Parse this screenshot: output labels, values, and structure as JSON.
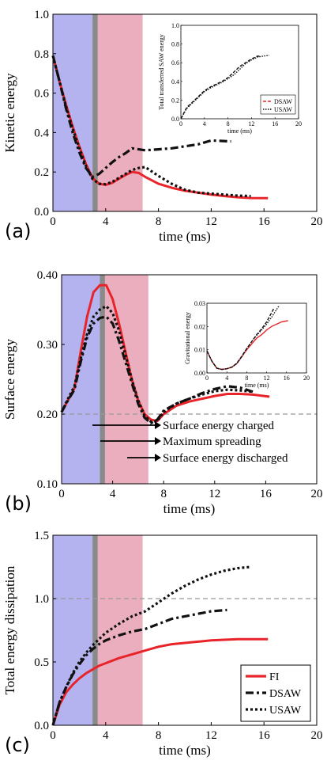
{
  "colors": {
    "phase1": "#b4b2ef",
    "phase2": "#eaaebf",
    "marker": "#8a8a8a",
    "FI": "#e8242a",
    "DSAW": "#111111",
    "USAW": "#111111",
    "refline": "#999999"
  },
  "chart_data": [
    {
      "type": "line",
      "panel": "(a)",
      "xlabel": "time (ms)",
      "ylabel": "Kinetic energy",
      "xlim": [
        0,
        20
      ],
      "ylim": [
        0,
        1.0
      ],
      "xticks": [
        "0",
        "4",
        "8",
        "12",
        "16",
        "20"
      ],
      "yticks": [
        "0.0",
        "0.2",
        "0.4",
        "0.6",
        "0.8",
        "1.0"
      ],
      "series": [
        {
          "key": "FI",
          "x": [
            0,
            0.5,
            1,
            1.5,
            2,
            2.5,
            3,
            3.5,
            4,
            4.5,
            5,
            5.5,
            6,
            6.5,
            7,
            8,
            9,
            10,
            11,
            12,
            13,
            14,
            15,
            16.3
          ],
          "y": [
            0.79,
            0.66,
            0.54,
            0.43,
            0.33,
            0.24,
            0.17,
            0.14,
            0.135,
            0.145,
            0.165,
            0.185,
            0.2,
            0.195,
            0.175,
            0.14,
            0.12,
            0.105,
            0.095,
            0.085,
            0.078,
            0.072,
            0.068,
            0.067
          ]
        },
        {
          "key": "DSAW",
          "x": [
            0,
            0.5,
            1,
            1.5,
            2,
            2.5,
            3,
            3.5,
            4,
            4.5,
            5,
            5.5,
            6,
            6.5,
            7,
            8,
            9,
            10,
            11,
            12,
            13.5
          ],
          "y": [
            0.79,
            0.66,
            0.52,
            0.4,
            0.3,
            0.22,
            0.175,
            0.19,
            0.22,
            0.25,
            0.275,
            0.295,
            0.32,
            0.315,
            0.31,
            0.315,
            0.32,
            0.33,
            0.34,
            0.36,
            0.355
          ]
        },
        {
          "key": "USAW",
          "x": [
            0,
            0.5,
            1,
            1.5,
            2,
            2.5,
            3,
            3.5,
            4,
            4.5,
            5,
            5.5,
            6,
            6.5,
            7,
            8,
            9,
            10,
            11,
            12,
            13,
            14,
            15
          ],
          "y": [
            0.79,
            0.66,
            0.53,
            0.42,
            0.32,
            0.23,
            0.165,
            0.14,
            0.138,
            0.15,
            0.17,
            0.19,
            0.21,
            0.22,
            0.225,
            0.18,
            0.14,
            0.11,
            0.095,
            0.09,
            0.085,
            0.08,
            0.078
          ]
        }
      ],
      "inset": {
        "xlabel": "time (ms)",
        "ylabel": "Total transferred SAW energy",
        "xlim": [
          0,
          20
        ],
        "ylim": [
          0,
          1.0
        ],
        "xticks": [
          "0",
          "4",
          "8",
          "12",
          "16",
          "20"
        ],
        "yticks": [
          "0.0",
          "0.2",
          "0.4",
          "0.6",
          "0.8",
          "1.0"
        ],
        "legend": [
          "DSAW",
          "USAW"
        ],
        "series": [
          {
            "key": "DSAW",
            "x": [
              0,
              1,
              2,
              3,
              4,
              5,
              6,
              7,
              8,
              9,
              10,
              11,
              12,
              13,
              13.5
            ],
            "y": [
              0.0,
              0.12,
              0.18,
              0.24,
              0.3,
              0.34,
              0.37,
              0.4,
              0.44,
              0.5,
              0.56,
              0.6,
              0.64,
              0.67,
              0.67
            ]
          },
          {
            "key": "USAW",
            "x": [
              0,
              1,
              2,
              3,
              4,
              5,
              6,
              7,
              8,
              9,
              10,
              11,
              12,
              13,
              14,
              15
            ],
            "y": [
              0.0,
              0.11,
              0.17,
              0.23,
              0.29,
              0.33,
              0.36,
              0.39,
              0.43,
              0.47,
              0.53,
              0.59,
              0.63,
              0.66,
              0.67,
              0.68
            ]
          }
        ]
      }
    },
    {
      "type": "line",
      "panel": "(b)",
      "xlabel": "time (ms)",
      "ylabel": "Surface energy",
      "xlim": [
        0,
        20
      ],
      "ylim": [
        0.1,
        0.4
      ],
      "xticks": [
        "0",
        "4",
        "8",
        "12",
        "16",
        "20"
      ],
      "yticks": [
        "0.10",
        "0.20",
        "0.30",
        "0.40"
      ],
      "refline": 0.2,
      "annotations": [
        "Surface energy charged",
        "Maximum spreading",
        "Surface energy discharged"
      ],
      "series": [
        {
          "key": "FI",
          "x": [
            0,
            0.5,
            1,
            1.5,
            2,
            2.5,
            3,
            3.5,
            4,
            4.5,
            5,
            5.5,
            6,
            6.5,
            7,
            7.5,
            8,
            9,
            10,
            11,
            12,
            13,
            14,
            15,
            16.3
          ],
          "y": [
            0.203,
            0.22,
            0.237,
            0.29,
            0.34,
            0.375,
            0.385,
            0.385,
            0.365,
            0.33,
            0.29,
            0.25,
            0.22,
            0.2,
            0.192,
            0.19,
            0.2,
            0.212,
            0.218,
            0.222,
            0.226,
            0.229,
            0.229,
            0.228,
            0.225
          ]
        },
        {
          "key": "DSAW",
          "x": [
            0,
            0.5,
            1,
            1.5,
            2,
            2.5,
            3,
            3.5,
            4,
            4.5,
            5,
            5.5,
            6,
            6.5,
            7,
            7.5,
            8,
            9,
            10,
            11,
            12,
            13,
            14,
            15
          ],
          "y": [
            0.203,
            0.22,
            0.235,
            0.275,
            0.31,
            0.33,
            0.338,
            0.34,
            0.33,
            0.305,
            0.275,
            0.245,
            0.215,
            0.195,
            0.187,
            0.192,
            0.205,
            0.215,
            0.222,
            0.23,
            0.236,
            0.24,
            0.238,
            0.232
          ]
        },
        {
          "key": "USAW",
          "x": [
            0,
            0.5,
            1,
            1.5,
            2,
            2.5,
            3,
            3.5,
            4,
            4.5,
            5,
            5.5,
            6,
            6.5,
            7,
            7.5,
            8,
            9,
            10,
            11,
            12,
            13,
            14,
            15
          ],
          "y": [
            0.203,
            0.222,
            0.24,
            0.28,
            0.315,
            0.34,
            0.35,
            0.355,
            0.345,
            0.32,
            0.285,
            0.25,
            0.22,
            0.198,
            0.189,
            0.19,
            0.203,
            0.215,
            0.222,
            0.228,
            0.233,
            0.235,
            0.234,
            0.232
          ]
        }
      ],
      "inset": {
        "xlabel": "time (ms)",
        "ylabel": "Gravitational energy",
        "xlim": [
          0,
          20
        ],
        "ylim": [
          0.0,
          0.03
        ],
        "xticks": [
          "0",
          "4",
          "8",
          "12",
          "16",
          "20"
        ],
        "yticks": [
          "0.00",
          "0.01",
          "0.02",
          "0.03"
        ],
        "series": [
          {
            "key": "FI",
            "x": [
              0,
              1,
              2,
              3,
              4,
              5,
              6,
              7,
              8,
              9,
              10,
              11,
              12,
              13,
              14,
              15,
              16.3
            ],
            "y": [
              0.0095,
              0.005,
              0.002,
              0.0015,
              0.0018,
              0.0025,
              0.004,
              0.007,
              0.01,
              0.0125,
              0.015,
              0.0165,
              0.0185,
              0.02,
              0.021,
              0.022,
              0.0225
            ]
          },
          {
            "key": "DSAW",
            "x": [
              0,
              1,
              2,
              3,
              4,
              5,
              6,
              7,
              8,
              9,
              10,
              11,
              12,
              13.5
            ],
            "y": [
              0.0095,
              0.005,
              0.002,
              0.0015,
              0.0018,
              0.0025,
              0.0042,
              0.0072,
              0.0105,
              0.0135,
              0.0165,
              0.019,
              0.022,
              0.028
            ]
          },
          {
            "key": "USAW",
            "x": [
              0,
              1,
              2,
              3,
              4,
              5,
              6,
              7,
              8,
              9,
              10,
              11,
              12,
              13,
              14.5
            ],
            "y": [
              0.0095,
              0.005,
              0.002,
              0.0015,
              0.0018,
              0.0025,
              0.004,
              0.007,
              0.0105,
              0.0135,
              0.0162,
              0.0185,
              0.021,
              0.024,
              0.029
            ]
          }
        ]
      }
    },
    {
      "type": "line",
      "panel": "(c)",
      "xlabel": "time (ms)",
      "ylabel": "Total energy dissipation",
      "xlim": [
        0,
        20
      ],
      "ylim": [
        0.0,
        1.5
      ],
      "xticks": [
        "0",
        "4",
        "8",
        "12",
        "16",
        "20"
      ],
      "yticks": [
        "0.0",
        "0.5",
        "1.0",
        "1.5"
      ],
      "refline": 1.0,
      "legend": [
        "FI",
        "DSAW",
        "USAW"
      ],
      "series": [
        {
          "key": "FI",
          "x": [
            0,
            0.5,
            1,
            1.5,
            2,
            2.5,
            3,
            3.5,
            4,
            5,
            6,
            7,
            8,
            9,
            10,
            11,
            12,
            13,
            14,
            15,
            16.3
          ],
          "y": [
            0.0,
            0.16,
            0.26,
            0.32,
            0.37,
            0.41,
            0.44,
            0.47,
            0.49,
            0.53,
            0.56,
            0.59,
            0.62,
            0.64,
            0.65,
            0.66,
            0.67,
            0.675,
            0.68,
            0.68,
            0.68
          ]
        },
        {
          "key": "DSAW",
          "x": [
            0,
            0.5,
            1,
            1.5,
            2,
            2.5,
            3,
            3.5,
            4,
            5,
            6,
            7,
            8,
            9,
            10,
            11,
            12,
            13.2
          ],
          "y": [
            0.0,
            0.18,
            0.3,
            0.4,
            0.48,
            0.55,
            0.6,
            0.64,
            0.67,
            0.71,
            0.74,
            0.76,
            0.8,
            0.84,
            0.86,
            0.88,
            0.9,
            0.91
          ]
        },
        {
          "key": "USAW",
          "x": [
            0,
            0.5,
            1,
            1.5,
            2,
            2.5,
            3,
            3.5,
            4,
            5,
            6,
            7,
            8,
            9,
            10,
            11,
            12,
            13,
            14,
            15
          ],
          "y": [
            0.0,
            0.18,
            0.3,
            0.41,
            0.5,
            0.57,
            0.63,
            0.68,
            0.73,
            0.8,
            0.86,
            0.9,
            0.97,
            1.04,
            1.1,
            1.15,
            1.19,
            1.22,
            1.24,
            1.25
          ]
        }
      ]
    }
  ]
}
